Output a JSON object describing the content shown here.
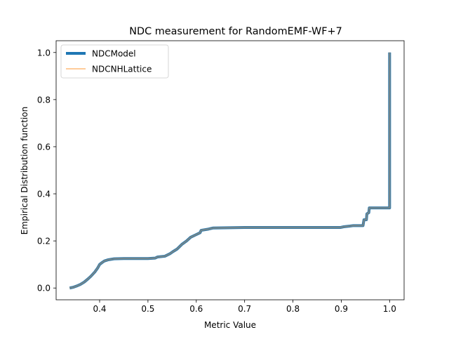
{
  "chart_data": {
    "type": "line",
    "title": "NDC measurement for RandomEMF-WF+7",
    "xlabel": "Metric Value",
    "ylabel": "Empirical Distribution function",
    "xlim": [
      0.31,
      1.03
    ],
    "ylim": [
      -0.05,
      1.05
    ],
    "xticks": [
      "0.4",
      "0.5",
      "0.6",
      "0.7",
      "0.8",
      "0.9",
      "1.0"
    ],
    "yticks": [
      "0.0",
      "0.2",
      "0.4",
      "0.6",
      "0.8",
      "1.0"
    ],
    "grid": false,
    "legend_position": "upper-left",
    "series": [
      {
        "name": "NDCModel",
        "color": "#1f77b4",
        "style": "thick",
        "points": [
          [
            0.338,
            0.0
          ],
          [
            0.345,
            0.003
          ],
          [
            0.352,
            0.008
          ],
          [
            0.36,
            0.015
          ],
          [
            0.368,
            0.025
          ],
          [
            0.375,
            0.037
          ],
          [
            0.382,
            0.05
          ],
          [
            0.39,
            0.068
          ],
          [
            0.396,
            0.085
          ],
          [
            0.4,
            0.1
          ],
          [
            0.405,
            0.108
          ],
          [
            0.41,
            0.115
          ],
          [
            0.418,
            0.12
          ],
          [
            0.43,
            0.124
          ],
          [
            0.45,
            0.125
          ],
          [
            0.5,
            0.125
          ],
          [
            0.515,
            0.127
          ],
          [
            0.52,
            0.132
          ],
          [
            0.535,
            0.135
          ],
          [
            0.545,
            0.145
          ],
          [
            0.552,
            0.155
          ],
          [
            0.56,
            0.165
          ],
          [
            0.57,
            0.185
          ],
          [
            0.58,
            0.2
          ],
          [
            0.588,
            0.215
          ],
          [
            0.598,
            0.225
          ],
          [
            0.608,
            0.235
          ],
          [
            0.61,
            0.245
          ],
          [
            0.625,
            0.25
          ],
          [
            0.635,
            0.255
          ],
          [
            0.7,
            0.257
          ],
          [
            0.8,
            0.257
          ],
          [
            0.898,
            0.257
          ],
          [
            0.905,
            0.26
          ],
          [
            0.918,
            0.263
          ],
          [
            0.925,
            0.265
          ],
          [
            0.945,
            0.265
          ],
          [
            0.947,
            0.29
          ],
          [
            0.952,
            0.29
          ],
          [
            0.953,
            0.315
          ],
          [
            0.957,
            0.32
          ],
          [
            0.958,
            0.34
          ],
          [
            0.999,
            0.34
          ],
          [
            1.0,
            0.34
          ],
          [
            1.0,
            1.0
          ]
        ]
      },
      {
        "name": "NDCNHLattice",
        "color": "#ffbb78",
        "style": "thin",
        "same_as": "NDCModel"
      }
    ],
    "overlap_color": "#5f7f8f"
  }
}
